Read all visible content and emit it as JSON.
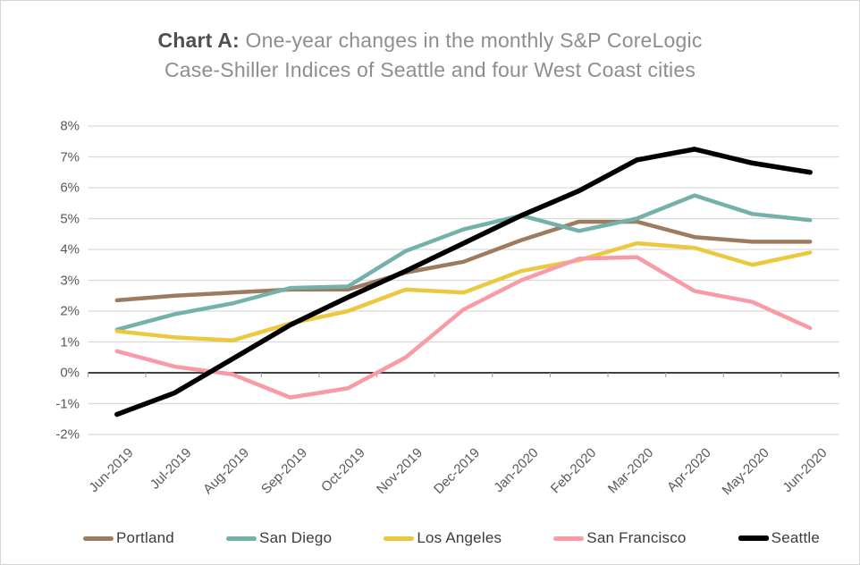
{
  "frame": {
    "background_color": "#ffffff",
    "border_color": "#d6d6d6"
  },
  "title": {
    "prefix": "Chart A:",
    "line1_rest": " One-year changes in the monthly S&P CoreLogic",
    "line2": "Case-Shiller Indices of Seattle and four West Coast cities"
  },
  "chart_data": {
    "type": "line",
    "x": [
      "Jun-2019",
      "Jul-2019",
      "Aug-2019",
      "Sep-2019",
      "Oct-2019",
      "Nov-2019",
      "Dec-2019",
      "Jan-2020",
      "Feb-2020",
      "Mar-2020",
      "Apr-2020",
      "May-2020",
      "Jun-2020"
    ],
    "series": [
      {
        "name": "Portland",
        "color": "#9c7b5e",
        "line_width": 4.5,
        "values": [
          2.35,
          2.5,
          2.6,
          2.7,
          2.7,
          3.25,
          3.6,
          4.3,
          4.9,
          4.9,
          4.4,
          4.25,
          4.25
        ]
      },
      {
        "name": "San Diego",
        "color": "#73b1aa",
        "line_width": 4.5,
        "values": [
          1.4,
          1.9,
          2.25,
          2.75,
          2.8,
          3.95,
          4.65,
          5.1,
          4.6,
          5.0,
          5.75,
          5.15,
          4.95
        ]
      },
      {
        "name": "Los Angeles",
        "color": "#ebc83d",
        "line_width": 4.5,
        "values": [
          1.35,
          1.15,
          1.05,
          1.6,
          2.0,
          2.7,
          2.6,
          3.3,
          3.65,
          4.2,
          4.05,
          3.5,
          3.9
        ]
      },
      {
        "name": "San Francisco",
        "color": "#f99ba7",
        "line_width": 4.5,
        "values": [
          0.7,
          0.2,
          -0.05,
          -0.8,
          -0.5,
          0.5,
          2.05,
          3.0,
          3.7,
          3.75,
          2.65,
          2.3,
          1.45
        ]
      },
      {
        "name": "Seattle",
        "color": "#000000",
        "line_width": 5.5,
        "values": [
          -1.35,
          -0.65,
          0.45,
          1.55,
          2.45,
          3.3,
          4.2,
          5.1,
          5.9,
          6.9,
          7.25,
          6.8,
          6.5
        ]
      }
    ],
    "y_tick_labels": [
      "8%",
      "7%",
      "6%",
      "5%",
      "4%",
      "3%",
      "2%",
      "1%",
      "0%",
      "-1%",
      "-2%"
    ],
    "ylim": [
      -2,
      8
    ],
    "ytick_step": 1,
    "grid": true,
    "gridline_color": "#d9d9d9",
    "zero_line": true,
    "zero_line_color": "#000000",
    "tick_color": "#a6a6a6",
    "legend_position": "bottom"
  }
}
